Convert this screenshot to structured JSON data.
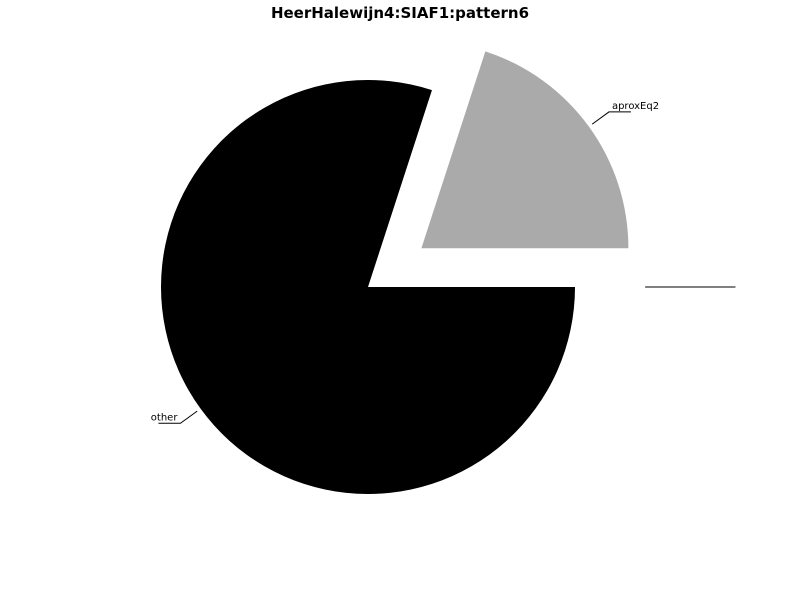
{
  "chart_data": {
    "type": "pie",
    "title": "HeerHalewijn4:SIAF1:pattern6",
    "slices": [
      {
        "label": "other",
        "value": 80,
        "color": "#000000",
        "exploded": false
      },
      {
        "label": "aproxEq2",
        "value": 20,
        "color": "#aaaaaa",
        "exploded": true
      },
      {
        "label": "",
        "value": 0,
        "color": "#ffffff",
        "exploded": true
      }
    ]
  }
}
